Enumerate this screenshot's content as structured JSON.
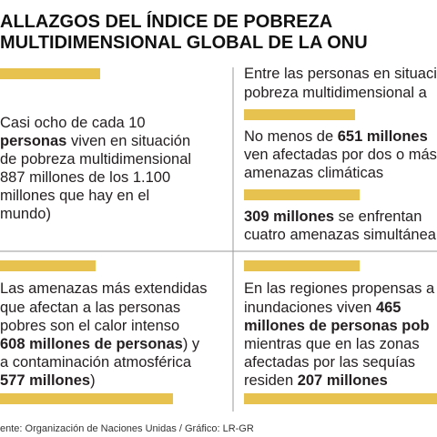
{
  "header": {
    "title_lines": [
      "ALLAZGOS DEL ÍNDICE DE POBREZA",
      "MULTIDIMENSIONAL GLOBAL DE LA ONU"
    ]
  },
  "quadrants": [
    {
      "lines": [
        [
          "Casi ocho de cada 10"
        ],
        [
          {
            "text": "personas",
            "bold": true
          },
          " viven en situación"
        ],
        [
          "de pobreza multidimensional"
        ],
        [
          "887 millones de los 1.100"
        ],
        [
          "millones que hay en el"
        ],
        [
          "mundo)"
        ]
      ]
    },
    {
      "lines": [
        [
          "Entre las personas en situaci"
        ],
        [
          "pobreza multidimensional a"
        ],
        [
          "No menos de ",
          {
            "text": "651 millones",
            "bold": true
          }
        ],
        [
          "ven afectadas por dos o más"
        ],
        [
          "amenazas climáticas"
        ],
        [
          {
            "text": "309 millones",
            "bold": true
          },
          " se enfrentan"
        ],
        [
          "cuatro amenazas simultánea"
        ]
      ]
    },
    {
      "lines": [
        [
          "Las amenazas más extendidas"
        ],
        [
          "que afectan a las personas"
        ],
        [
          "pobres son el calor intenso"
        ],
        [
          {
            "text": "608 millones de personas",
            "bold": true
          },
          ") y"
        ],
        [
          "a contaminación atmosférica"
        ],
        [
          {
            "text": "577 millones",
            "bold": true
          },
          ")"
        ]
      ]
    },
    {
      "lines": [
        [
          "En las regiones propensas a"
        ],
        [
          "inundaciones viven ",
          {
            "text": "465",
            "bold": true
          }
        ],
        [
          {
            "text": "millones de personas pob",
            "bold": true
          }
        ],
        [
          "mientras que en las zonas"
        ],
        [
          "afectadas por las sequías"
        ],
        [
          "residen ",
          {
            "text": "207 millones",
            "bold": true
          }
        ]
      ]
    }
  ],
  "source": "ente: Organización de Naciones Unidas / Gráfico: LR-GR"
}
